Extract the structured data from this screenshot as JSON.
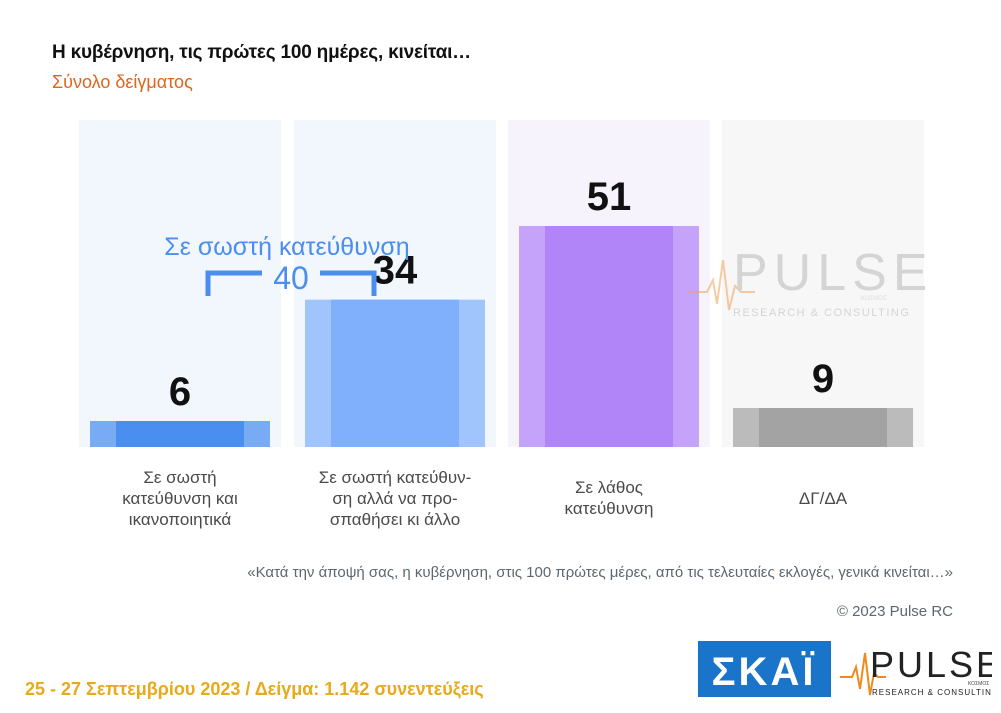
{
  "title": "Η κυβέρνηση, τις πρώτες 100 ημέρες, κινείται…",
  "subtitle": "Σύνολο δείγματος",
  "chart_data": {
    "type": "bar",
    "categories": [
      "Σε σωστή κατεύθυνση και ικανοποιητικά",
      "Σε σωστή κατεύθυνση αλλά να προσπαθήσει κι άλλο",
      "Σε λάθος κατεύθυνση",
      "ΔΓ/ΔΑ"
    ],
    "category_lines": [
      [
        "Σε σωστή",
        "κατεύθυνση και",
        "ικανοποιητικά"
      ],
      [
        "Σε σωστή κατεύθυν-",
        "ση αλλά να προ-",
        "σπαθήσει κι άλλο"
      ],
      [
        "Σε λάθος",
        "κατεύθυνση"
      ],
      [
        "ΔΓ/ΔΑ"
      ]
    ],
    "values": [
      6,
      34,
      51,
      9
    ],
    "value_labels": [
      "6",
      "34",
      "51",
      "9"
    ],
    "colors": [
      "#4a8ef0",
      "#80b0fb",
      "#b184f8",
      "#a3a3a3"
    ],
    "panel_colors": [
      "#f2f7fd",
      "#f2f7fd",
      "#f7f3fd",
      "#f7f7f7"
    ],
    "ylim": [
      0,
      60
    ],
    "bracket": {
      "label": "Σε σωστή κατεύθυνση",
      "value": "40",
      "color": "#4a8ef0"
    }
  },
  "question": "«Κατά την άποψή σας, η κυβέρνηση, στις 100 πρώτες μέρες, από τις τελευταίες εκλογές, γενικά κινείται…»",
  "copyright": "© 2023 Pulse RC",
  "footer": "25 - 27  Σεπτεμβρίου  2023  /  Δείγμα:  1.142 συνεντεύξεις",
  "logos": {
    "skai_text": "ΣΚΑΪ",
    "pulse_text": "PULSE",
    "pulse_tagline": "RESEARCH & CONSULTING",
    "pulse_small": "ΚΟΣΜΟΣ",
    "skai_color": "#1a74c9",
    "pulse_color": "#222222",
    "pulse_accent": "#f08a1c"
  }
}
